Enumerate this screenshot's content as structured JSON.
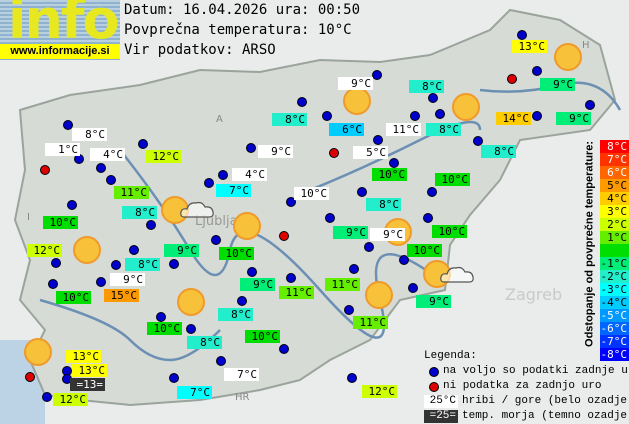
{
  "logo": {
    "word": "info",
    "url": "www.informacije.si"
  },
  "header": {
    "date_line": "Datum: 16.04.2026 ura: 00:50",
    "avg_line": "Povprečna temperatura: 10°C",
    "source_line": "Vir podatkov: ARSO"
  },
  "colors": {
    "white": "#ffffff",
    "dark": "#333333",
    "c15": "#ff9900",
    "c14": "#ffcc00",
    "c13": "#ffff00",
    "c12": "#ccff00",
    "c11": "#66ee00",
    "c10": "#00dd00",
    "c9": "#00ee77",
    "c8": "#22eecc",
    "c7": "#00ffff",
    "c6": "#00ccff",
    "dot_ok": "#0000cc",
    "dot_missing": "#dd0000"
  },
  "stations": [
    {
      "t": "8°C",
      "c": "white"
    },
    {
      "t": "1°C",
      "c": "white"
    },
    {
      "t": "4°C",
      "c": "white"
    },
    {
      "t": "11°C",
      "c": "c11"
    },
    {
      "t": "12°C",
      "c": "c12"
    },
    {
      "t": "10°C",
      "c": "c10"
    },
    {
      "t": "8°C",
      "c": "c8"
    },
    {
      "t": "12°C",
      "c": "c12"
    },
    {
      "t": "8°C",
      "c": "c8"
    },
    {
      "t": "9°C",
      "c": "white"
    },
    {
      "t": "10°C",
      "c": "c10"
    },
    {
      "t": "15°C",
      "c": "c15"
    },
    {
      "t": "9°C",
      "c": "c9"
    },
    {
      "t": "10°C",
      "c": "c10"
    },
    {
      "t": "9°C",
      "c": "white"
    },
    {
      "t": "4°C",
      "c": "white"
    },
    {
      "t": "7°C",
      "c": "c7"
    },
    {
      "t": "10°C",
      "c": "white"
    },
    {
      "t": "8°C",
      "c": "c8"
    },
    {
      "t": "9°C",
      "c": "white"
    },
    {
      "t": "8°C",
      "c": "c8"
    },
    {
      "t": "6°C",
      "c": "c6"
    },
    {
      "t": "11°C",
      "c": "white"
    },
    {
      "t": "8°C",
      "c": "c8"
    },
    {
      "t": "13°C",
      "c": "c13"
    },
    {
      "t": "9°C",
      "c": "c9"
    },
    {
      "t": "14°C",
      "c": "c14"
    },
    {
      "t": "9°C",
      "c": "c9"
    },
    {
      "t": "5°C",
      "c": "white"
    },
    {
      "t": "8°C",
      "c": "c8"
    },
    {
      "t": "10°C",
      "c": "c10"
    },
    {
      "t": "10°C",
      "c": "c10"
    },
    {
      "t": "8°C",
      "c": "c8"
    },
    {
      "t": "9°C",
      "c": "c9"
    },
    {
      "t": "9°C",
      "c": "white"
    },
    {
      "t": "10°C",
      "c": "c10"
    },
    {
      "t": "10°C",
      "c": "c10"
    },
    {
      "t": "9°C",
      "c": "c9"
    },
    {
      "t": "11°C",
      "c": "c11"
    },
    {
      "t": "11°C",
      "c": "c11"
    },
    {
      "t": "9°C",
      "c": "c9"
    },
    {
      "t": "8°C",
      "c": "c8"
    },
    {
      "t": "11°C",
      "c": "c11"
    },
    {
      "t": "10°C",
      "c": "c10"
    },
    {
      "t": "8°C",
      "c": "c8"
    },
    {
      "t": "10°C",
      "c": "c10"
    },
    {
      "t": "7°C",
      "c": "white"
    },
    {
      "t": "7°C",
      "c": "c7"
    },
    {
      "t": "13°C",
      "c": "c13"
    },
    {
      "t": "13°C",
      "c": "c13"
    },
    {
      "t": "=13=",
      "c": "dark"
    },
    {
      "t": "12°C",
      "c": "c12"
    },
    {
      "t": "12°C",
      "c": "c12"
    }
  ],
  "scale": {
    "title": "Odstopanje od povprečne temperature:",
    "steps": [
      {
        "t": "8°C",
        "c": "#ff0000"
      },
      {
        "t": "7°C",
        "c": "#ff3300"
      },
      {
        "t": "6°C",
        "c": "#ff6600"
      },
      {
        "t": "5°C",
        "c": "#ff9900"
      },
      {
        "t": "4°C",
        "c": "#ffcc00"
      },
      {
        "t": "3°C",
        "c": "#ffff00"
      },
      {
        "t": "2°C",
        "c": "#ccff00"
      },
      {
        "t": "1°C",
        "c": "#66ee00"
      },
      {
        "t": "",
        "c": "#00dd00"
      },
      {
        "t": "-1°C",
        "c": "#00ee77"
      },
      {
        "t": "-2°C",
        "c": "#22eecc"
      },
      {
        "t": "-3°C",
        "c": "#00ffff"
      },
      {
        "t": "-4°C",
        "c": "#00ccff"
      },
      {
        "t": "-5°C",
        "c": "#0099ff"
      },
      {
        "t": "-6°C",
        "c": "#0066ff"
      },
      {
        "t": "-7°C",
        "c": "#0033ff"
      },
      {
        "t": "-8°C",
        "c": "#0000ff"
      }
    ]
  },
  "legend": {
    "title": "Legenda:",
    "ok": "na voljo so podatki zadnje ure",
    "missing": "ni podatka za zadnjo uro",
    "hill_sample": "25°C",
    "hill": "hribi / gore (belo ozadje)",
    "sea_sample": "=25=",
    "sea": "temp. morja (temno ozadje)"
  },
  "map_labels": {
    "city": "Ljubljana",
    "zagreb": "Zagreb",
    "hr": "HR",
    "a": "A",
    "i": "I",
    "h": "H"
  }
}
